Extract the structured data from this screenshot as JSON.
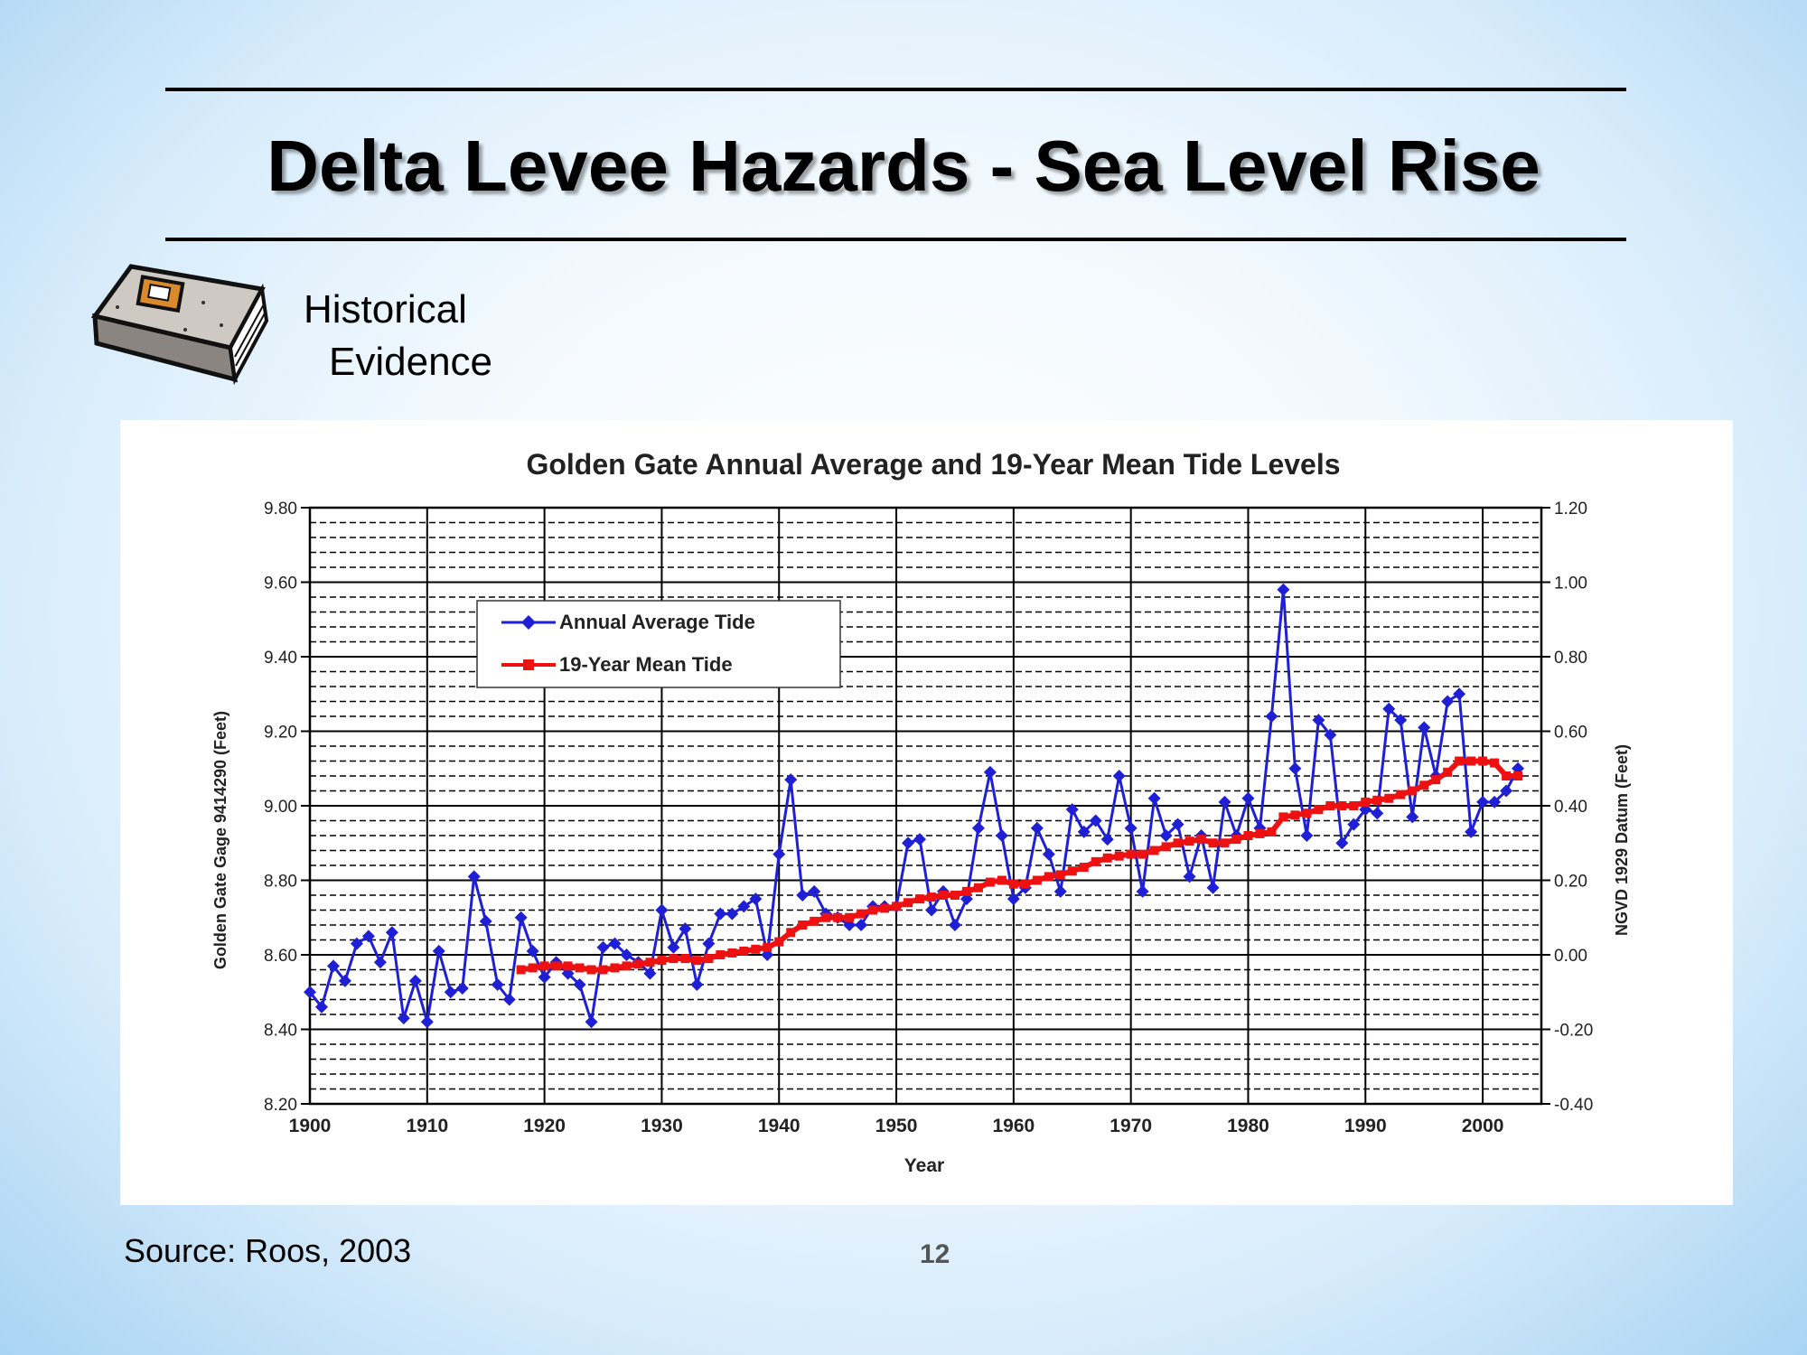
{
  "slide": {
    "title": "Delta Levee Hazards - Sea Level Rise",
    "subtitle_line1": "Historical",
    "subtitle_line2": "Evidence",
    "source": "Source: Roos, 2003",
    "page_number": "12"
  },
  "icons": {
    "book": "book-icon"
  },
  "colors": {
    "annual": "#1f1fd6",
    "mean": "#ee1111"
  },
  "chart_data": {
    "type": "line",
    "title": "Golden Gate Annual Average and 19-Year Mean Tide Levels",
    "xlabel": "Year",
    "ylabel": "Golden Gate Gage 9414290 (Feet)",
    "y2label": "NGVD 1929 Datum (Feet)",
    "xlim": [
      1900,
      2005
    ],
    "ylim": [
      8.2,
      9.8
    ],
    "x_ticks": [
      1900,
      1910,
      1920,
      1930,
      1940,
      1950,
      1960,
      1970,
      1980,
      1990,
      2000
    ],
    "x_tick_labels": [
      "1900",
      "1910",
      "1920",
      "1930",
      "1940",
      "1950",
      "1960",
      "1970",
      "1980",
      "1990",
      "2000"
    ],
    "y_ticks": [
      8.2,
      8.4,
      8.6,
      8.8,
      9.0,
      9.2,
      9.4,
      9.6,
      9.8
    ],
    "y_tick_labels": [
      "8.20",
      "8.40",
      "8.60",
      "8.80",
      "9.00",
      "9.20",
      "9.40",
      "9.60",
      "9.80"
    ],
    "y2_tick_labels": [
      "-0.40",
      "-0.20",
      "0.00",
      "0.20",
      "0.40",
      "0.60",
      "0.80",
      "1.00",
      "1.20"
    ],
    "grid": true,
    "legend_position": "top-left",
    "series": [
      {
        "name": "Annual Average Tide",
        "color": "#1f1fd6",
        "marker": "diamond",
        "x": [
          1900,
          1901,
          1902,
          1903,
          1904,
          1905,
          1906,
          1907,
          1908,
          1909,
          1910,
          1911,
          1912,
          1913,
          1914,
          1915,
          1916,
          1917,
          1918,
          1919,
          1920,
          1921,
          1922,
          1923,
          1924,
          1925,
          1926,
          1927,
          1928,
          1929,
          1930,
          1931,
          1932,
          1933,
          1934,
          1935,
          1936,
          1937,
          1938,
          1939,
          1940,
          1941,
          1942,
          1943,
          1944,
          1945,
          1946,
          1947,
          1948,
          1949,
          1950,
          1951,
          1952,
          1953,
          1954,
          1955,
          1956,
          1957,
          1958,
          1959,
          1960,
          1961,
          1962,
          1963,
          1964,
          1965,
          1966,
          1967,
          1968,
          1969,
          1970,
          1971,
          1972,
          1973,
          1974,
          1975,
          1976,
          1977,
          1978,
          1979,
          1980,
          1981,
          1982,
          1983,
          1984,
          1985,
          1986,
          1987,
          1988,
          1989,
          1990,
          1991,
          1992,
          1993,
          1994,
          1995,
          1996,
          1997,
          1998,
          1999,
          2000,
          2001,
          2002,
          2003
        ],
        "values": [
          8.5,
          8.46,
          8.57,
          8.53,
          8.63,
          8.65,
          8.58,
          8.66,
          8.43,
          8.53,
          8.42,
          8.61,
          8.5,
          8.51,
          8.81,
          8.69,
          8.52,
          8.48,
          8.7,
          8.61,
          8.54,
          8.58,
          8.55,
          8.52,
          8.42,
          8.62,
          8.63,
          8.6,
          8.58,
          8.55,
          8.72,
          8.62,
          8.67,
          8.52,
          8.63,
          8.71,
          8.71,
          8.73,
          8.75,
          8.6,
          8.87,
          9.07,
          8.76,
          8.77,
          8.71,
          8.7,
          8.68,
          8.68,
          8.73,
          8.73,
          8.73,
          8.9,
          8.91,
          8.72,
          8.77,
          8.68,
          8.75,
          8.94,
          9.09,
          8.92,
          8.75,
          8.78,
          8.94,
          8.87,
          8.77,
          8.99,
          8.93,
          8.96,
          8.91,
          9.08,
          8.94,
          8.77,
          9.02,
          8.92,
          8.95,
          8.81,
          8.92,
          8.78,
          9.01,
          8.92,
          9.02,
          8.94,
          9.24,
          9.58,
          9.1,
          8.92,
          9.23,
          9.19,
          8.9,
          8.95,
          8.99,
          8.98,
          9.26,
          9.23,
          8.97,
          9.21,
          9.08,
          9.28,
          9.3,
          8.93,
          9.01,
          9.01,
          9.04,
          9.1
        ]
      },
      {
        "name": "19-Year Mean Tide",
        "color": "#ee1111",
        "marker": "square",
        "x": [
          1918,
          1919,
          1920,
          1921,
          1922,
          1923,
          1924,
          1925,
          1926,
          1927,
          1928,
          1929,
          1930,
          1931,
          1932,
          1933,
          1934,
          1935,
          1936,
          1937,
          1938,
          1939,
          1940,
          1941,
          1942,
          1943,
          1944,
          1945,
          1946,
          1947,
          1948,
          1949,
          1950,
          1951,
          1952,
          1953,
          1954,
          1955,
          1956,
          1957,
          1958,
          1959,
          1960,
          1961,
          1962,
          1963,
          1964,
          1965,
          1966,
          1967,
          1968,
          1969,
          1970,
          1971,
          1972,
          1973,
          1974,
          1975,
          1976,
          1977,
          1978,
          1979,
          1980,
          1981,
          1982,
          1983,
          1984,
          1985,
          1986,
          1987,
          1988,
          1989,
          1990,
          1991,
          1992,
          1993,
          1994,
          1995,
          1996,
          1997,
          1998,
          1999,
          2000,
          2001,
          2002,
          2003
        ],
        "values": [
          8.56,
          8.565,
          8.57,
          8.57,
          8.57,
          8.565,
          8.56,
          8.56,
          8.565,
          8.57,
          8.575,
          8.58,
          8.585,
          8.59,
          8.59,
          8.585,
          8.59,
          8.6,
          8.605,
          8.61,
          8.615,
          8.62,
          8.635,
          8.66,
          8.68,
          8.69,
          8.7,
          8.7,
          8.7,
          8.71,
          8.72,
          8.725,
          8.73,
          8.74,
          8.75,
          8.755,
          8.76,
          8.76,
          8.77,
          8.78,
          8.795,
          8.8,
          8.79,
          8.79,
          8.8,
          8.81,
          8.815,
          8.825,
          8.835,
          8.85,
          8.86,
          8.865,
          8.87,
          8.87,
          8.88,
          8.89,
          8.9,
          8.905,
          8.91,
          8.9,
          8.9,
          8.91,
          8.92,
          8.925,
          8.93,
          8.97,
          8.975,
          8.98,
          8.99,
          9.0,
          9.0,
          9.0,
          9.01,
          9.015,
          9.02,
          9.03,
          9.04,
          9.055,
          9.07,
          9.09,
          9.12,
          9.12,
          9.12,
          9.115,
          9.08,
          9.08
        ]
      }
    ]
  }
}
